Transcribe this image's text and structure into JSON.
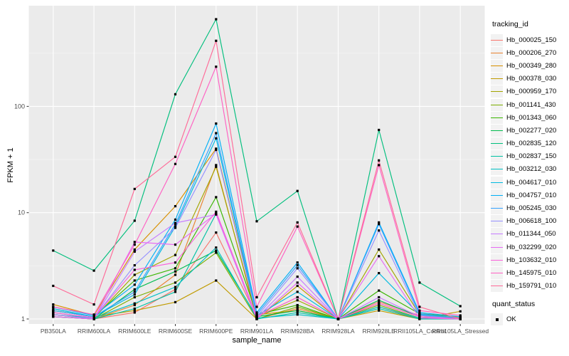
{
  "chart_data": {
    "type": "line",
    "xlabel": "sample_name",
    "ylabel": "FPKM + 1",
    "y_scale": "log10",
    "y_ticks": [
      1,
      10,
      100
    ],
    "grid": "on",
    "legend_position": "right",
    "legend_title": "tracking_id",
    "legend2_title": "quant_status",
    "legend2_items": [
      {
        "label": "OK"
      }
    ],
    "marker": "small-black-square",
    "marker_color": "#000000",
    "panel_bg": "#EBEBEB",
    "grid_major_color": "#FFFFFF",
    "grid_minor_color": "#F7F7F7",
    "axis_text_color": "#4D4D4D",
    "categories": [
      "PB350LA",
      "RRIM600LA",
      "RRIM600LE",
      "RRIM600SE",
      "RRIM600PE",
      "RRIM901LA",
      "RRIM928BA",
      "RRIM928LA",
      "RRIM928LE",
      "RRII105LA_Control",
      "RRII105LA_Stressed"
    ],
    "series": [
      {
        "name": "Hb_000025_150",
        "color": "#F8766D",
        "values": [
          1.1,
          1.0,
          1.15,
          1.9,
          6.5,
          1.05,
          1.6,
          1.0,
          1.45,
          1.08,
          1.0
        ]
      },
      {
        "name": "Hb_000206_270",
        "color": "#EA8331",
        "values": [
          1.05,
          1.0,
          1.35,
          2.6,
          28,
          1.0,
          1.25,
          1.0,
          1.3,
          1.0,
          1.05
        ]
      },
      {
        "name": "Hb_000349_280",
        "color": "#D89000",
        "values": [
          1.37,
          1.08,
          4.5,
          11.5,
          40,
          1.1,
          1.2,
          1.0,
          1.4,
          1.05,
          1.0
        ]
      },
      {
        "name": "Hb_000378_030",
        "color": "#C09B00",
        "values": [
          1.2,
          1.05,
          1.2,
          1.44,
          2.3,
          1.0,
          2.05,
          1.0,
          1.2,
          1.0,
          1.18
        ]
      },
      {
        "name": "Hb_000959_170",
        "color": "#A3A500",
        "values": [
          1.15,
          1.02,
          2.6,
          4.0,
          27,
          1.05,
          1.5,
          1.0,
          4.5,
          1.1,
          1.02
        ]
      },
      {
        "name": "Hb_001141_430",
        "color": "#7CAE00",
        "values": [
          1.05,
          1.0,
          1.6,
          2.2,
          4.2,
          1.0,
          1.3,
          1.0,
          1.35,
          1.02,
          1.0
        ]
      },
      {
        "name": "Hb_001343_060",
        "color": "#39B600",
        "values": [
          1.2,
          1.05,
          2.3,
          3.0,
          14,
          1.1,
          1.35,
          1.0,
          1.85,
          1.12,
          1.05
        ]
      },
      {
        "name": "Hb_002277_020",
        "color": "#00BB4E",
        "values": [
          1.1,
          1.0,
          1.9,
          2.8,
          4.4,
          1.05,
          1.2,
          1.0,
          1.5,
          1.05,
          1.0
        ]
      },
      {
        "name": "Hb_002835_120",
        "color": "#00BF7D",
        "values": [
          4.4,
          2.85,
          8.4,
          130,
          660,
          8.3,
          16.0,
          1.0,
          60.0,
          2.2,
          1.32
        ]
      },
      {
        "name": "Hb_002837_150",
        "color": "#00C1A3",
        "values": [
          1.05,
          1.0,
          1.25,
          1.8,
          9.8,
          1.0,
          1.15,
          1.0,
          1.25,
          1.0,
          1.0
        ]
      },
      {
        "name": "Hb_003212_030",
        "color": "#00BFC4",
        "values": [
          1.1,
          1.02,
          1.4,
          2.0,
          4.7,
          1.02,
          1.1,
          1.0,
          1.3,
          1.02,
          1.0
        ]
      },
      {
        "name": "Hb_004617_010",
        "color": "#00BAE0",
        "values": [
          1.25,
          1.05,
          1.7,
          7.4,
          50,
          1.08,
          1.8,
          1.0,
          2.7,
          1.1,
          1.0
        ]
      },
      {
        "name": "Hb_004757_010",
        "color": "#00B0F6",
        "values": [
          1.3,
          1.08,
          2.1,
          8.6,
          69,
          1.15,
          3.4,
          1.0,
          8.1,
          1.15,
          1.05
        ]
      },
      {
        "name": "Hb_005245_030",
        "color": "#35A2FF",
        "values": [
          1.2,
          1.05,
          1.8,
          7.8,
          56,
          1.1,
          3.2,
          1.0,
          7.8,
          1.12,
          1.02
        ]
      },
      {
        "name": "Hb_006618_100",
        "color": "#9590FF",
        "values": [
          1.15,
          1.02,
          3.2,
          7.2,
          39,
          1.05,
          3.0,
          1.0,
          6.8,
          1.08,
          1.0
        ]
      },
      {
        "name": "Hb_011344_050",
        "color": "#C77CFF",
        "values": [
          1.1,
          1.0,
          4.3,
          8.0,
          9.6,
          1.02,
          2.5,
          1.0,
          1.6,
          1.05,
          1.0
        ]
      },
      {
        "name": "Hb_032299_020",
        "color": "#E76BF3",
        "values": [
          1.05,
          1.0,
          5.3,
          5.0,
          9.8,
          1.0,
          2.2,
          1.0,
          3.9,
          1.02,
          1.0
        ]
      },
      {
        "name": "Hb_103632_010",
        "color": "#FA62DB",
        "values": [
          1.15,
          1.03,
          2.9,
          3.4,
          10.2,
          1.05,
          1.6,
          1.0,
          1.4,
          1.05,
          1.0
        ]
      },
      {
        "name": "Hb_145975_010",
        "color": "#FF61C3",
        "values": [
          1.3,
          1.1,
          5.0,
          28.7,
          236,
          1.3,
          7.4,
          1.0,
          28.0,
          1.2,
          1.08
        ]
      },
      {
        "name": "Hb_159791_010",
        "color": "#FF6A98",
        "values": [
          2.05,
          1.37,
          16.7,
          33.5,
          414,
          1.6,
          8.1,
          1.0,
          31.0,
          1.3,
          1.0
        ]
      }
    ]
  }
}
